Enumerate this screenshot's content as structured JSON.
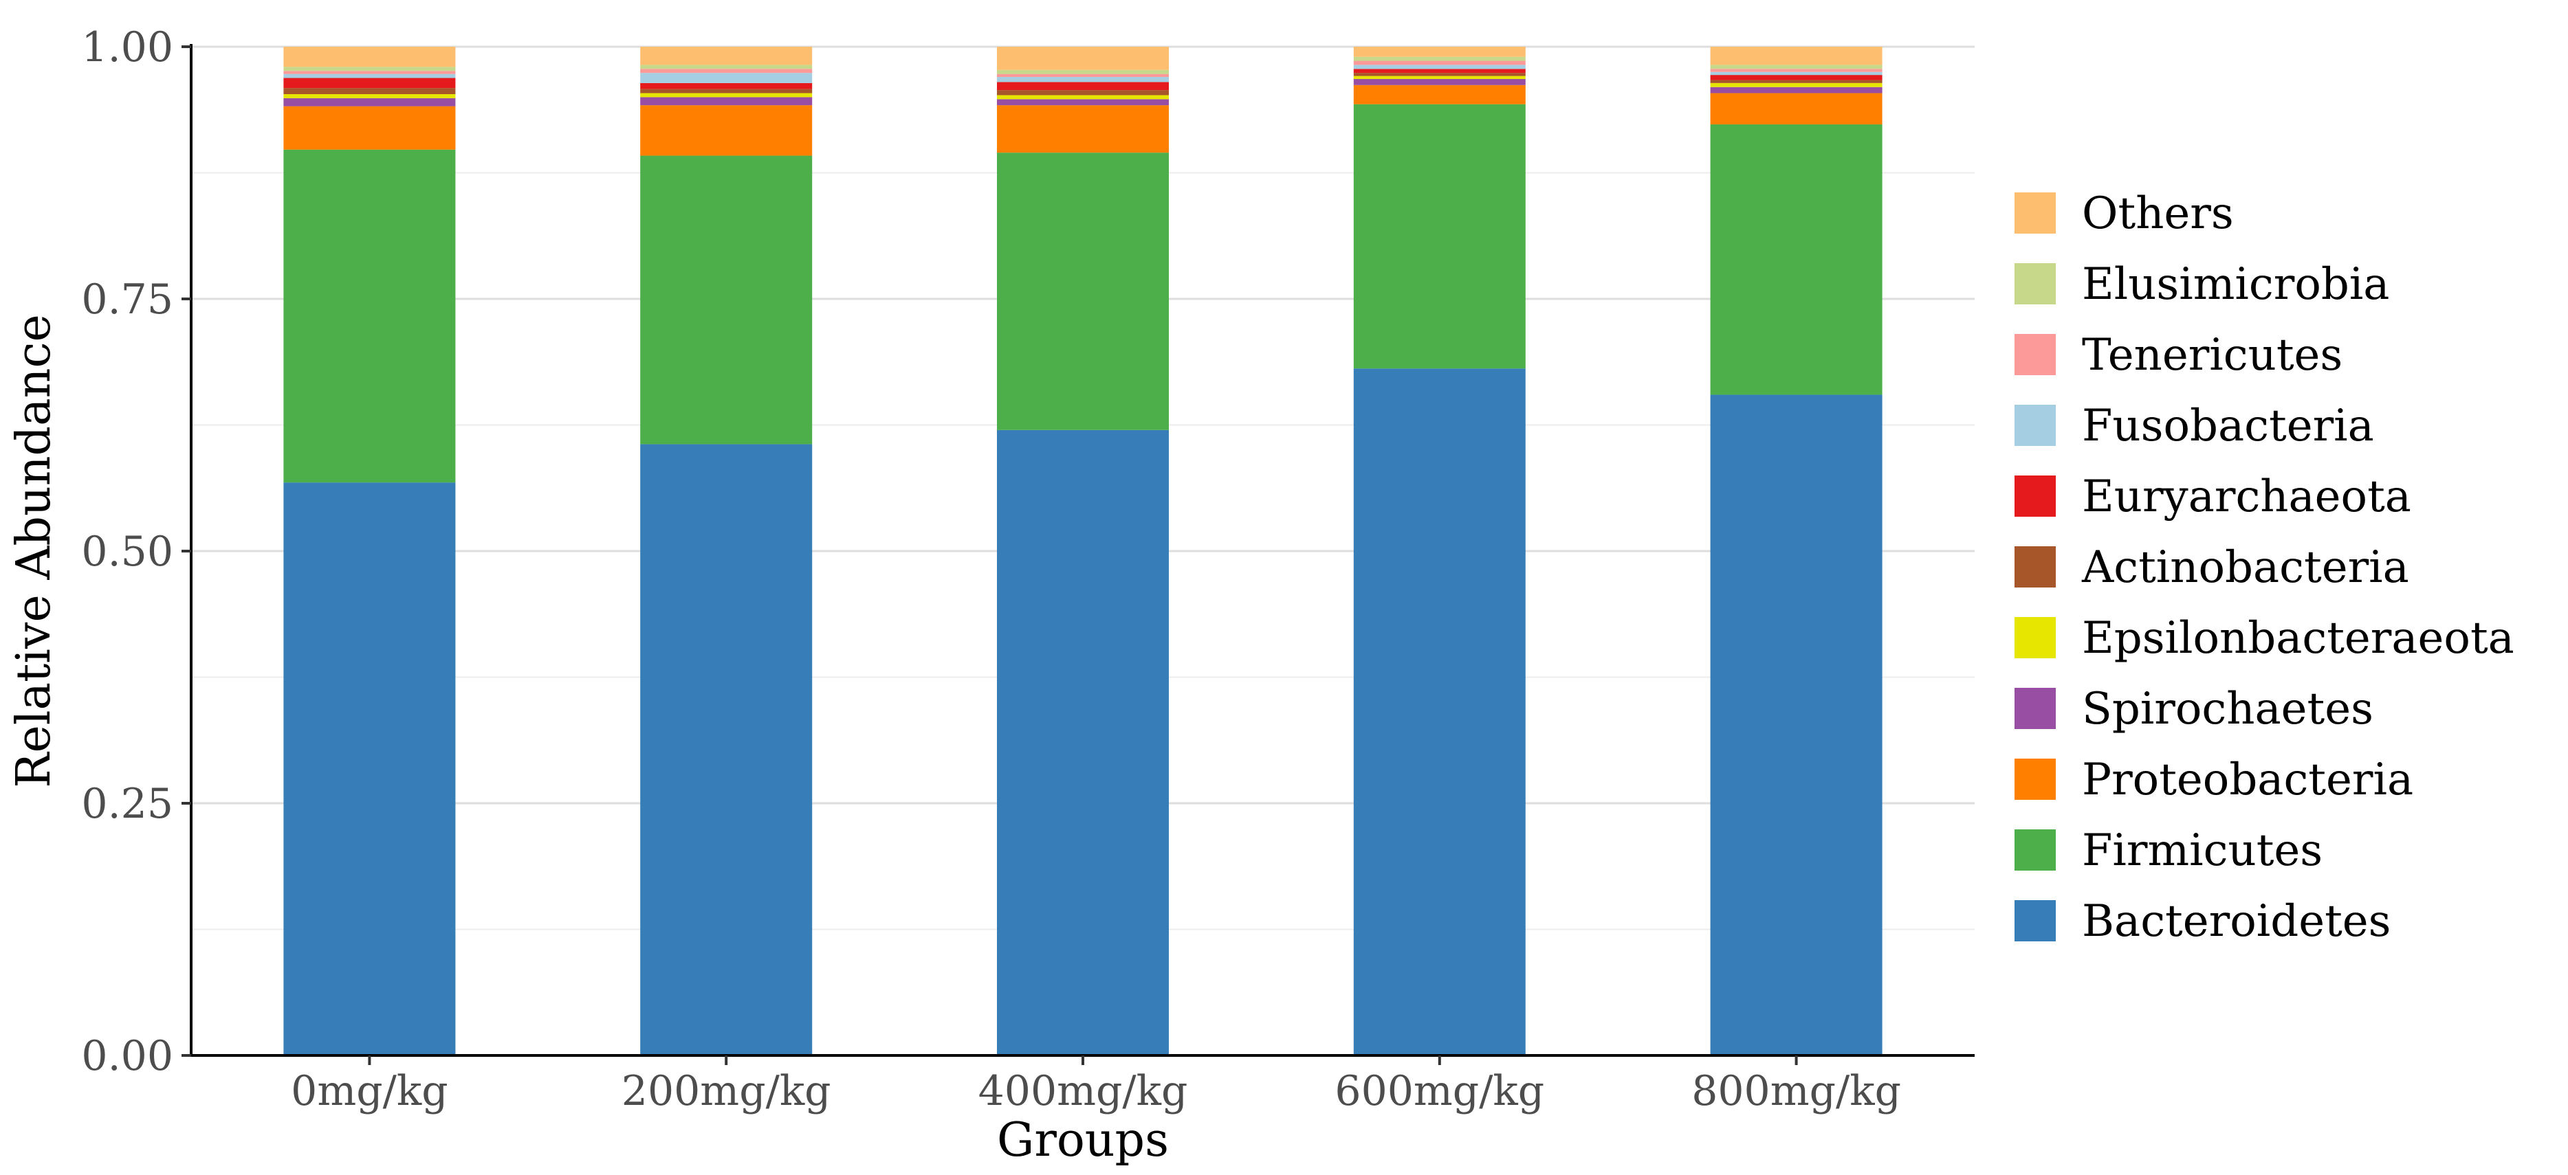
{
  "chart_data": {
    "type": "bar",
    "stacked": true,
    "title": "",
    "xlabel": "Groups",
    "ylabel": "Relative Abundance",
    "ylim": [
      0,
      1
    ],
    "yticks": [
      "0.00",
      "0.25",
      "0.50",
      "0.75",
      "1.00"
    ],
    "ytick_values": [
      0,
      0.25,
      0.5,
      0.75,
      1.0
    ],
    "grid": true,
    "legend_position": "right",
    "categories": [
      "0mg/kg",
      "200mg/kg",
      "400mg/kg",
      "600mg/kg",
      "800mg/kg"
    ],
    "series": [
      {
        "name": "Bacteroidetes",
        "color": "#377EB8",
        "values": [
          0.568,
          0.606,
          0.62,
          0.681,
          0.655
        ]
      },
      {
        "name": "Firmicutes",
        "color": "#4DAF4A",
        "values": [
          0.33,
          0.286,
          0.275,
          0.262,
          0.268
        ]
      },
      {
        "name": "Proteobacteria",
        "color": "#FF7F00",
        "values": [
          0.043,
          0.05,
          0.047,
          0.019,
          0.031
        ]
      },
      {
        "name": "Spirochaetes",
        "color": "#984EA3",
        "values": [
          0.008,
          0.008,
          0.006,
          0.006,
          0.006
        ]
      },
      {
        "name": "Epsilonbacteraeota",
        "color": "#E6E600",
        "values": [
          0.004,
          0.004,
          0.004,
          0.003,
          0.004
        ]
      },
      {
        "name": "Actinobacteria",
        "color": "#A65628",
        "values": [
          0.006,
          0.004,
          0.005,
          0.003,
          0.003
        ]
      },
      {
        "name": "Euryarchaeota",
        "color": "#E41A1C",
        "values": [
          0.01,
          0.006,
          0.008,
          0.004,
          0.005
        ]
      },
      {
        "name": "Fusobacteria",
        "color": "#A6CEE3",
        "values": [
          0.004,
          0.01,
          0.005,
          0.004,
          0.003
        ]
      },
      {
        "name": "Tenericutes",
        "color": "#FB9A99",
        "values": [
          0.003,
          0.004,
          0.003,
          0.004,
          0.003
        ]
      },
      {
        "name": "Elusimicrobia",
        "color": "#C7D88A",
        "values": [
          0.004,
          0.004,
          0.004,
          0.004,
          0.004
        ]
      },
      {
        "name": "Others",
        "color": "#FDBF6F",
        "values": [
          0.02,
          0.018,
          0.023,
          0.01,
          0.018
        ]
      }
    ]
  }
}
